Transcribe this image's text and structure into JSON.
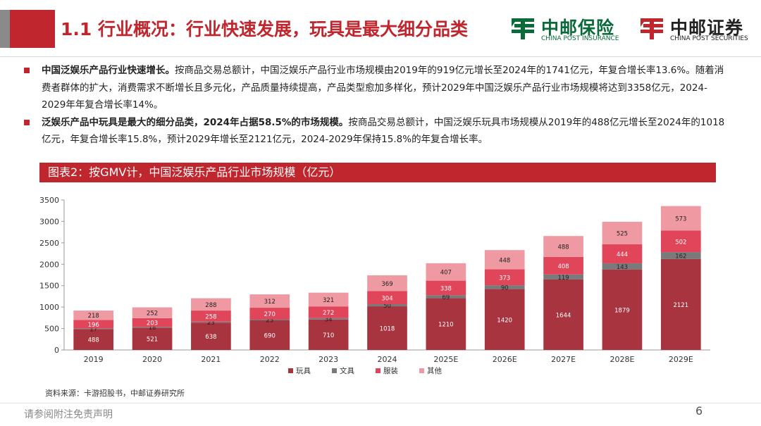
{
  "title": "1.1 行业概况：行业快速发展，玩具是最大细分品类",
  "logos": [
    {
      "zh": "中邮保险",
      "en": "CHINA POST INSURANCE",
      "color": "#0a6b3a"
    },
    {
      "zh": "中邮证券",
      "en": "CHINA POST SECURITIES",
      "color": "#c0262d"
    }
  ],
  "bullets": [
    {
      "bold": "中国泛娱乐产品行业快速增长。",
      "text": "按商品交易总额计，中国泛娱乐产品行业市场规模由2019年的919亿元增长至2024年的1741亿元，年复合增长率13.6%。随着消费者群体的扩大，消费需求不断增长且多元化，产品质量持续提高，产品类型愈加多样化，预计2029年中国泛娱乐产品行业市场规模将达到3358亿元，2024-2029年年复合增长率14%。"
    },
    {
      "bold": "泛娱乐产品中玩具是最大的细分品类，2024年占据58.5%的市场规模。",
      "text": "按商品交易总额计，中国泛娱乐玩具市场规模从2019年的488亿元增长至2024年的1018亿元，年复合增长率15.8%，预计2029年增长至2121亿元，2024-2029年保持15.8%的年复合增长率。"
    }
  ],
  "chart_heading": "图表2：按GMV计，中国泛娱乐产品行业市场规模（亿元）",
  "chart_data": {
    "type": "bar",
    "stacked": true,
    "categories": [
      "2019",
      "2020",
      "2021",
      "2022",
      "2023",
      "2024",
      "2025E",
      "2026E",
      "2027E",
      "2028E",
      "2029E"
    ],
    "series": [
      {
        "name": "玩具",
        "color": "#a8343f",
        "values": [
          488,
          521,
          638,
          690,
          710,
          1018,
          1210,
          1420,
          1644,
          1879,
          2121
        ]
      },
      {
        "name": "文具",
        "color": "#7a7a7a",
        "values": [
          17,
          18,
          23,
          25,
          34,
          50,
          69,
          90,
          119,
          143,
          162
        ]
      },
      {
        "name": "服装",
        "color": "#e0455a",
        "values": [
          196,
          203,
          258,
          270,
          272,
          304,
          338,
          373,
          408,
          444,
          502
        ]
      },
      {
        "name": "其他",
        "color": "#ef9aa2",
        "values": [
          218,
          252,
          288,
          312,
          321,
          369,
          407,
          448,
          488,
          525,
          573
        ]
      }
    ],
    "ylim": [
      0,
      3500
    ],
    "yticks": [
      0,
      500,
      1000,
      1500,
      2000,
      2500,
      3000,
      3500
    ],
    "legend_position": "bottom"
  },
  "source": "资料来源：卡游招股书，中邮证券研究所",
  "footer": "请参阅附注免责声明",
  "page_number": "6"
}
